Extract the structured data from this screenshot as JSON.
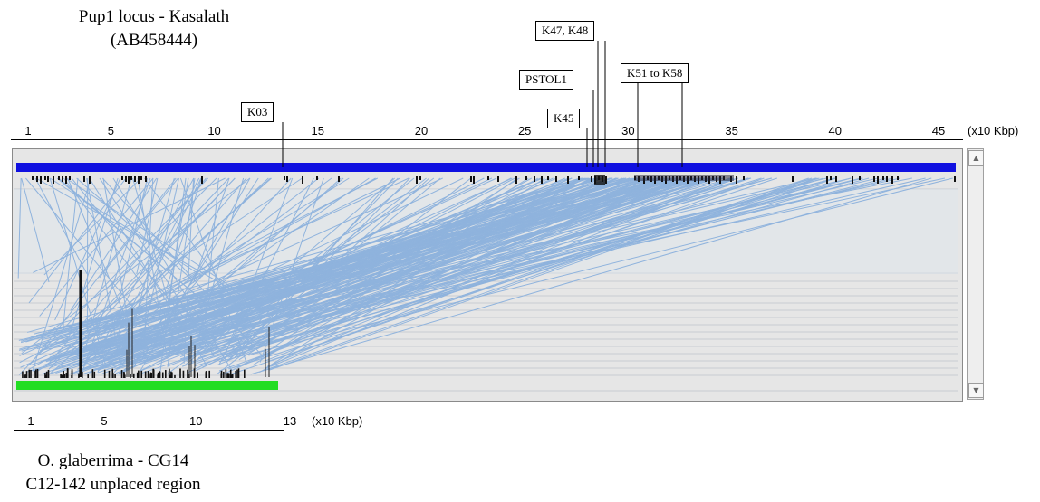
{
  "top_title_line1": "Pup1 locus - Kasalath",
  "top_title_line2": "(AB458444)",
  "bottom_title_line1": "O. glaberrima - CG14",
  "bottom_title_line2": "C12-142 unplaced region",
  "top_axis": {
    "ticks": [
      "1",
      "5",
      "10",
      "15",
      "20",
      "25",
      "30",
      "35",
      "40",
      "45"
    ],
    "unit": "(x10 Kbp)"
  },
  "bottom_axis": {
    "ticks": [
      "1",
      "5",
      "10",
      "13"
    ],
    "unit": "(x10 Kbp)"
  },
  "callouts": {
    "k03": "K03",
    "pstol1": "PSTOL1",
    "k45": "K45",
    "k47_k48": "K47, K48",
    "k51_k58": "K51 to K58"
  },
  "colors": {
    "top_sequence_bar": "#1010e0",
    "bottom_sequence_bar": "#22dd22",
    "alignment_lines": "#8fb3dd",
    "viewer_background": "#e6e6e6",
    "track_lines": "#c8ccd2"
  },
  "icons": {
    "scroll_up": "scroll-up-arrow-icon",
    "scroll_down": "scroll-down-arrow-icon"
  }
}
